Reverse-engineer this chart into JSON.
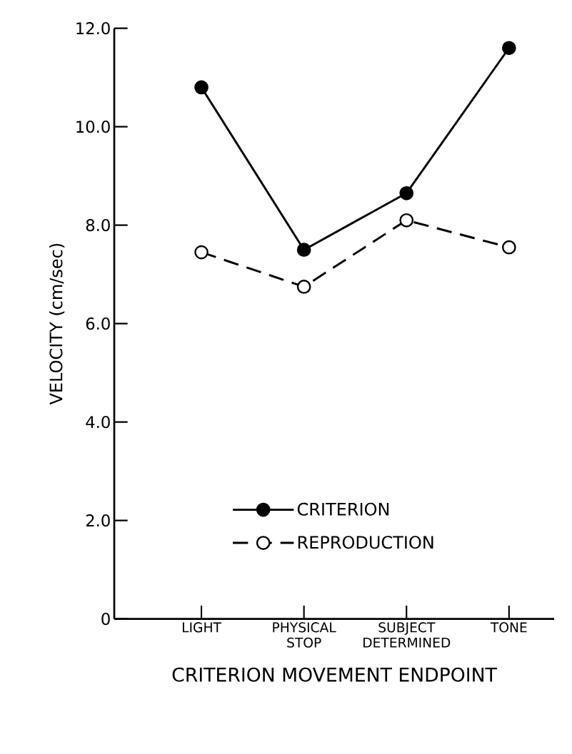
{
  "chart_data": {
    "type": "line",
    "xlabel": "CRITERION MOVEMENT ENDPOINT",
    "ylabel": "VELOCITY (cm/sec)",
    "categories": [
      "LIGHT",
      "PHYSICAL STOP",
      "SUBJECT DETERMINED",
      "TONE"
    ],
    "ylim": [
      0,
      12
    ],
    "yticks": [
      0,
      {
        "value": 2,
        "label": "2.0"
      },
      {
        "value": 4,
        "label": "4.0"
      },
      {
        "value": 6,
        "label": "6.0"
      },
      {
        "value": 8,
        "label": "8.0"
      },
      {
        "value": 10,
        "label": "10.0"
      },
      {
        "value": 12,
        "label": "12.0"
      }
    ],
    "series": [
      {
        "name": "CRITERION",
        "color": "#000000",
        "values": [
          10.8,
          7.5,
          8.65,
          11.6
        ],
        "line_style": "solid"
      },
      {
        "name": "REPRODUCTION",
        "color": "#000000",
        "values": [
          7.45,
          6.75,
          8.1,
          7.55
        ],
        "line_style": "dashed"
      }
    ],
    "marker": "circle",
    "legend": "bottom",
    "grid": false
  }
}
